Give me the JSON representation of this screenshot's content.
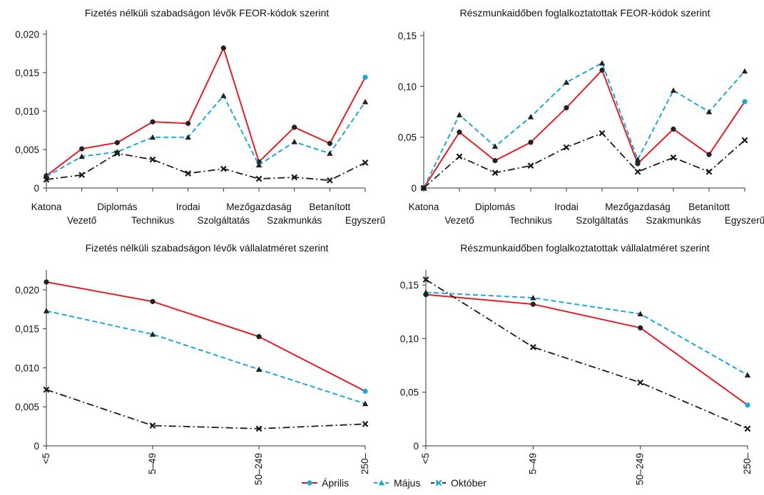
{
  "colors": {
    "Április": "#e31e26",
    "Május": "#1ea8d9",
    "Október": "#1a1a1a",
    "axis": "#333333"
  },
  "legend": {
    "items": [
      {
        "name": "Április",
        "marker": "circle"
      },
      {
        "name": "Május",
        "marker": "triangle"
      },
      {
        "name": "Október",
        "marker": "cross"
      }
    ]
  },
  "chart_data": [
    {
      "type": "line",
      "title": "Fizetés nélküli szabadságon lévők FEOR-kódok szerint",
      "categories": [
        "Katona",
        "Vezető",
        "Diplomás",
        "Technikus",
        "Irodai",
        "Szolgáltatás",
        "Mezőgazdaság",
        "Szakmunkás",
        "Betanított",
        "Egyszerű"
      ],
      "category_label_row": [
        0,
        1,
        0,
        1,
        0,
        1,
        0,
        1,
        0,
        1
      ],
      "ylim": [
        0,
        0.02
      ],
      "yticks": [
        0,
        0.005,
        0.01,
        0.015,
        0.02
      ],
      "ytick_labels": [
        "0",
        "0,005",
        "0,010",
        "0,015",
        "0,020"
      ],
      "series": [
        {
          "name": "Április",
          "values": [
            0.0016,
            0.0051,
            0.0059,
            0.0086,
            0.0084,
            0.0182,
            0.0034,
            0.0079,
            0.0058,
            0.0144
          ]
        },
        {
          "name": "Május",
          "values": [
            0.0015,
            0.0041,
            0.0047,
            0.0066,
            0.0066,
            0.012,
            0.003,
            0.006,
            0.0045,
            0.0112
          ]
        },
        {
          "name": "Október",
          "values": [
            0.0011,
            0.0017,
            0.0045,
            0.0037,
            0.0019,
            0.0025,
            0.0012,
            0.0014,
            0.001,
            0.0033
          ]
        }
      ]
    },
    {
      "type": "line",
      "title": "Részmunkaidőben foglalkoztatottak FEOR-kódok szerint",
      "categories": [
        "Katona",
        "Vezető",
        "Diplomás",
        "Technikus",
        "Irodai",
        "Szolgáltatás",
        "Mezőgazdaság",
        "Szakmunkás",
        "Betanított",
        "Egyszerű"
      ],
      "category_label_row": [
        0,
        1,
        0,
        1,
        0,
        1,
        0,
        1,
        0,
        1
      ],
      "ylim": [
        0,
        0.15
      ],
      "yticks": [
        0,
        0.05,
        0.1,
        0.15
      ],
      "ytick_labels": [
        "0",
        "0,05",
        "0,10",
        "0,15"
      ],
      "series": [
        {
          "name": "Április",
          "values": [
            0.0,
            0.055,
            0.027,
            0.045,
            0.079,
            0.116,
            0.024,
            0.058,
            0.033,
            0.085
          ]
        },
        {
          "name": "Május",
          "values": [
            0.0,
            0.072,
            0.041,
            0.07,
            0.104,
            0.123,
            0.028,
            0.096,
            0.075,
            0.115
          ]
        },
        {
          "name": "Október",
          "values": [
            0.0,
            0.031,
            0.015,
            0.022,
            0.04,
            0.054,
            0.016,
            0.03,
            0.016,
            0.047
          ]
        }
      ]
    },
    {
      "type": "line",
      "title": "Fizetés nélküli szabadságon lévők vállalatméret szerint",
      "categories": [
        "<5",
        "5–49",
        "50–249",
        "250–"
      ],
      "ylim": [
        0,
        0.022
      ],
      "yticks": [
        0,
        0.005,
        0.01,
        0.015,
        0.02
      ],
      "ytick_labels": [
        "0",
        "0,005",
        "0,010",
        "0,015",
        "0,020"
      ],
      "series": [
        {
          "name": "Április",
          "values": [
            0.021,
            0.0185,
            0.014,
            0.007
          ]
        },
        {
          "name": "Május",
          "values": [
            0.0173,
            0.0143,
            0.0098,
            0.0054
          ]
        },
        {
          "name": "Október",
          "values": [
            0.0072,
            0.0026,
            0.0022,
            0.0028
          ]
        }
      ]
    },
    {
      "type": "line",
      "title": "Részmunkaidőben foglalkoztatottak vállalatméret szerint",
      "categories": [
        "<5",
        "5–49",
        "50–249",
        "250–"
      ],
      "ylim": [
        0,
        0.16
      ],
      "yticks": [
        0,
        0.05,
        0.1,
        0.15
      ],
      "ytick_labels": [
        "0",
        "0,05",
        "0,10",
        "0,15"
      ],
      "series": [
        {
          "name": "Április",
          "values": [
            0.141,
            0.132,
            0.11,
            0.038
          ]
        },
        {
          "name": "Május",
          "values": [
            0.143,
            0.138,
            0.123,
            0.066
          ]
        },
        {
          "name": "Október",
          "values": [
            0.155,
            0.092,
            0.059,
            0.016
          ]
        }
      ]
    }
  ]
}
